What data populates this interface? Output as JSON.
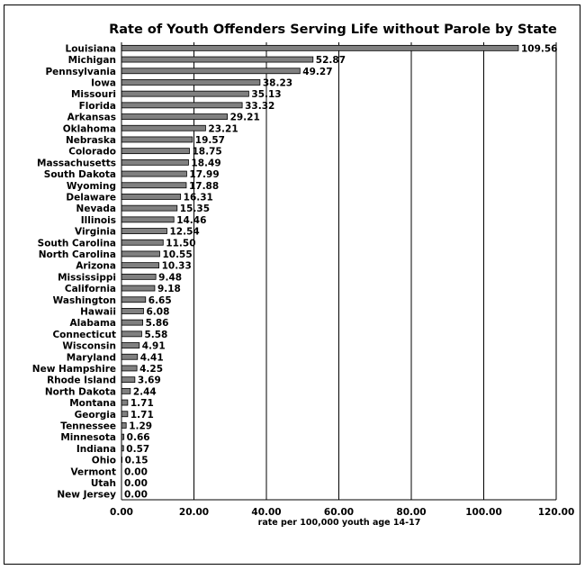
{
  "chart_data": {
    "type": "bar",
    "orientation": "horizontal",
    "title": "Rate of Youth Offenders Serving Life without Parole by State",
    "xlabel": "rate per 100,000 youth age 14-17",
    "ylabel": "",
    "xlim": [
      0,
      120
    ],
    "x_ticks": [
      "0.00",
      "20.00",
      "40.00",
      "60.00",
      "80.00",
      "100.00",
      "120.00"
    ],
    "grid": "vertical",
    "bar_color": "#808080",
    "categories": [
      "Louisiana",
      "Michigan",
      "Pennsylvania",
      "Iowa",
      "Missouri",
      "Florida",
      "Arkansas",
      "Oklahoma",
      "Nebraska",
      "Colorado",
      "Massachusetts",
      "South Dakota",
      "Wyoming",
      "Delaware",
      "Nevada",
      "Illinois",
      "Virginia",
      "South Carolina",
      "North Carolina",
      "Arizona",
      "Mississippi",
      "California",
      "Washington",
      "Hawaii",
      "Alabama",
      "Connecticut",
      "Wisconsin",
      "Maryland",
      "New Hampshire",
      "Rhode Island",
      "North Dakota",
      "Montana",
      "Georgia",
      "Tennessee",
      "Minnesota",
      "Indiana",
      "Ohio",
      "Vermont",
      "Utah",
      "New Jersey"
    ],
    "values": [
      109.56,
      52.87,
      49.27,
      38.23,
      35.13,
      33.32,
      29.21,
      23.21,
      19.57,
      18.75,
      18.49,
      17.99,
      17.88,
      16.31,
      15.35,
      14.46,
      12.54,
      11.5,
      10.55,
      10.33,
      9.48,
      9.18,
      6.65,
      6.08,
      5.86,
      5.58,
      4.91,
      4.41,
      4.25,
      3.69,
      2.44,
      1.71,
      1.71,
      1.29,
      0.66,
      0.57,
      0.15,
      0.0,
      0.0,
      0.0
    ],
    "value_labels": [
      "109.56",
      "52.87",
      "49.27",
      "38.23",
      "35.13",
      "33.32",
      "29.21",
      "23.21",
      "19.57",
      "18.75",
      "18.49",
      "17.99",
      "17.88",
      "16.31",
      "15.35",
      "14.46",
      "12.54",
      "11.50",
      "10.55",
      "10.33",
      "9.48",
      "9.18",
      "6.65",
      "6.08",
      "5.86",
      "5.58",
      "4.91",
      "4.41",
      "4.25",
      "3.69",
      "2.44",
      "1.71",
      "1.71",
      "1.29",
      "0.66",
      "0.57",
      "0.15",
      "0.00",
      "0.00",
      "0.00"
    ]
  }
}
